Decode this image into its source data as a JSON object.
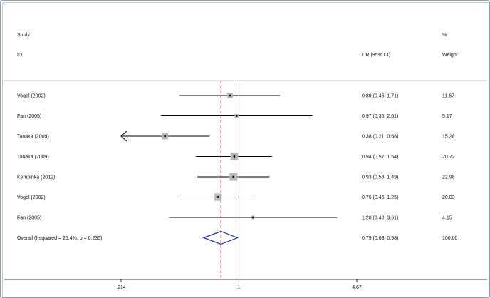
{
  "chart_data": {
    "type": "forest",
    "headers": {
      "study_line1": "Study",
      "study_line2": "ID",
      "or_header": "OR (95% CI)",
      "weight_line1": "%",
      "weight_line2": "Weight"
    },
    "x_axis": {
      "scale": "log",
      "range": [
        0.214,
        4.67
      ],
      "ticks": [
        0.214,
        1,
        4.67
      ],
      "tick_labels": [
        ".214",
        "1",
        "4.67"
      ]
    },
    "reference_line": 1,
    "overall_line": 0.79,
    "studies": [
      {
        "label": "Vogel (2002)",
        "or": 0.89,
        "lower": 0.46,
        "upper": 1.71,
        "ci_text": "0.89 (0.46, 1.71)",
        "weight": "11.67",
        "truncated_left": false
      },
      {
        "label": "Fan (2005)",
        "or": 0.97,
        "lower": 0.36,
        "upper": 2.61,
        "ci_text": "0.97 (0.36, 2.61)",
        "weight": "5.17",
        "truncated_left": false
      },
      {
        "label": "Tanaka (2009)",
        "or": 0.38,
        "lower": 0.21,
        "upper": 0.68,
        "ci_text": "0.38 (0.21, 0.68)",
        "weight": "15.28",
        "truncated_left": true
      },
      {
        "label": "Tanaka (2009)",
        "or": 0.94,
        "lower": 0.57,
        "upper": 1.54,
        "ci_text": "0.94 (0.57, 1.54)",
        "weight": "20.72",
        "truncated_left": false
      },
      {
        "label": "Kempinka (2012)",
        "or": 0.93,
        "lower": 0.58,
        "upper": 1.49,
        "ci_text": "0.93 (0.58, 1.49)",
        "weight": "22.98",
        "truncated_left": false
      },
      {
        "label": "Vogel (2002)",
        "or": 0.76,
        "lower": 0.46,
        "upper": 1.25,
        "ci_text": "0.76 (0.46, 1.25)",
        "weight": "20.03",
        "truncated_left": false
      },
      {
        "label": "Fan (2005)",
        "or": 1.2,
        "lower": 0.4,
        "upper": 3.61,
        "ci_text": "1.20 (0.40, 3.61)",
        "weight": "4.15",
        "truncated_left": false
      }
    ],
    "overall": {
      "label": "Overall  (I-squared = 25.4%, p = 0.235)",
      "or": 0.79,
      "lower": 0.63,
      "upper": 0.98,
      "ci_text": "0.79 (0.63, 0.98)",
      "weight": "100.00"
    },
    "colors": {
      "box": "#b8b8b8",
      "line": "#000000",
      "overall_line": "#cc2222",
      "diamond": "#1a2f8a"
    }
  }
}
